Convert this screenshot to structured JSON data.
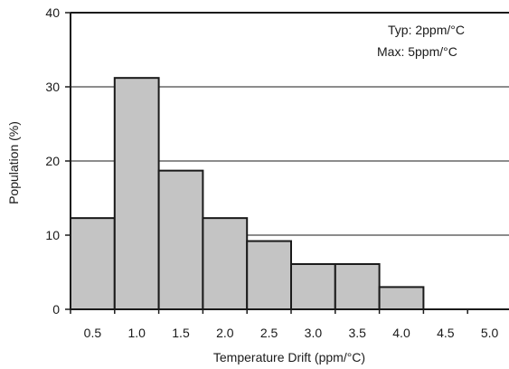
{
  "chart_data": {
    "type": "bar",
    "categories": [
      "0.5",
      "1.0",
      "1.5",
      "2.0",
      "2.5",
      "3.0",
      "3.5",
      "4.0",
      "4.5",
      "5.0"
    ],
    "values": [
      12.3,
      31.2,
      18.7,
      12.3,
      9.2,
      6.1,
      6.1,
      3.0,
      0,
      0
    ],
    "xlabel": "Temperature Drift (ppm/°C)",
    "ylabel": "Population (%)",
    "ylim": [
      0,
      40
    ],
    "yticks": [
      0,
      10,
      20,
      30,
      40
    ],
    "grid": "horizontal",
    "annotations": [
      "Typ: 2ppm/°C",
      "Max: 5ppm/°C"
    ],
    "colors": {
      "bar_fill": "#c4c4c4",
      "bar_stroke": "#1a1a1a",
      "axis": "#1a1a1a"
    }
  }
}
